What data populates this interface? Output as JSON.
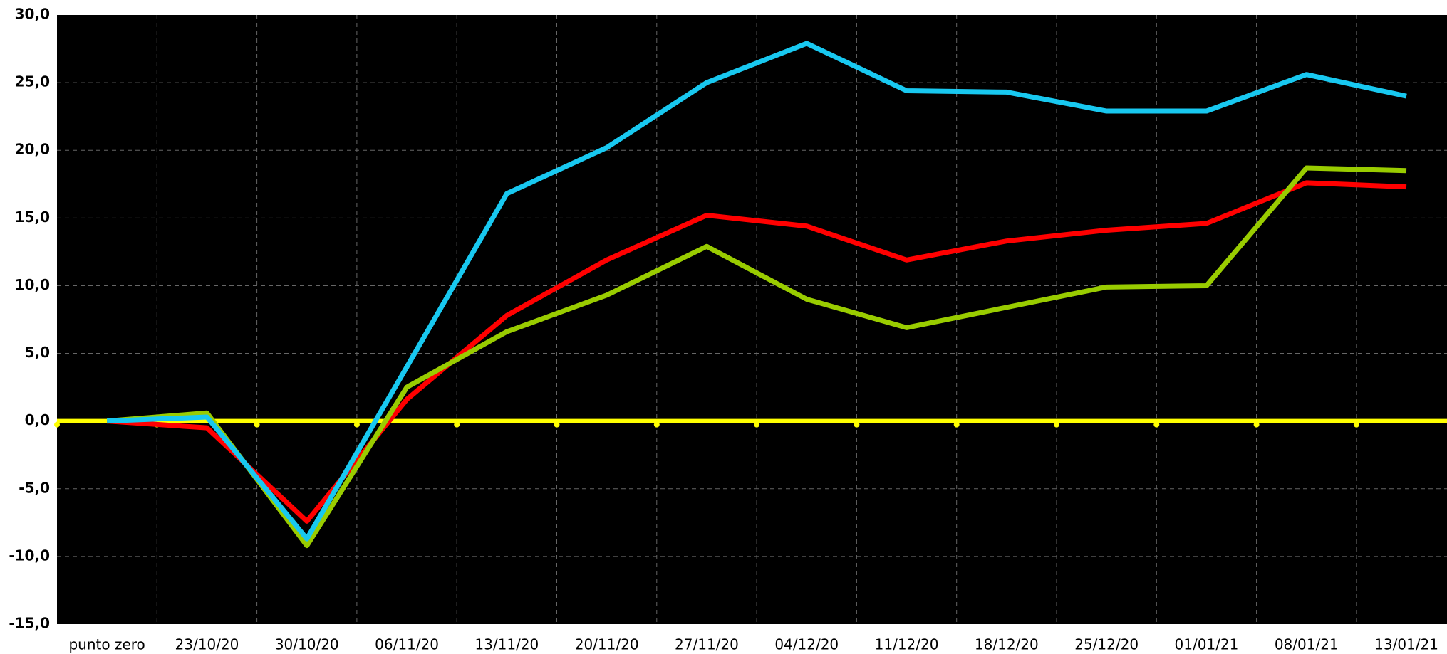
{
  "chart_data": {
    "type": "line",
    "categories": [
      "punto zero",
      "23/10/20",
      "30/10/20",
      "06/11/20",
      "13/11/20",
      "20/11/20",
      "27/11/20",
      "04/12/20",
      "11/12/20",
      "18/12/20",
      "25/12/20",
      "01/01/21",
      "08/01/21",
      "13/01/21"
    ],
    "series": [
      {
        "color": "#ff0000",
        "values": [
          0,
          -0.5,
          -7.4,
          1.6,
          7.8,
          11.9,
          15.2,
          14.4,
          11.9,
          13.3,
          14.1,
          14.6,
          17.6,
          17.3
        ]
      },
      {
        "color": "#99cc00",
        "values": [
          0,
          0.6,
          -9.2,
          2.5,
          6.6,
          9.3,
          12.9,
          9.0,
          6.9,
          8.4,
          9.9,
          10.0,
          18.7,
          18.5
        ]
      },
      {
        "color": "#18c8f0",
        "values": [
          0,
          0.3,
          -8.7,
          4.0,
          16.8,
          20.2,
          25.0,
          27.9,
          24.4,
          24.3,
          22.9,
          22.9,
          25.6,
          24.0
        ]
      }
    ],
    "ylim": [
      -15,
      30
    ],
    "yticks": [
      {
        "value": -15,
        "label": "-15,0"
      },
      {
        "value": -10,
        "label": "-10,0"
      },
      {
        "value": -5,
        "label": "-5,0"
      },
      {
        "value": 0,
        "label": "0,0"
      },
      {
        "value": 5,
        "label": "5,0"
      },
      {
        "value": 10,
        "label": "10,0"
      },
      {
        "value": 15,
        "label": "15,0"
      },
      {
        "value": 20,
        "label": "20,0"
      },
      {
        "value": 25,
        "label": "25,0"
      },
      {
        "value": 30,
        "label": "30,0"
      }
    ],
    "grid": true,
    "zero_line_color": "#ffff00"
  }
}
